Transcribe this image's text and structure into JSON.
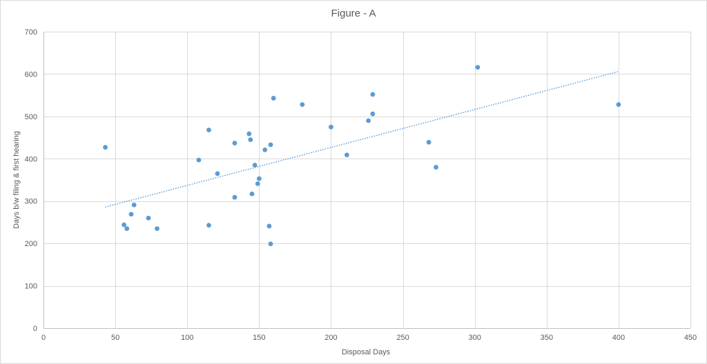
{
  "chart_data": {
    "type": "scatter",
    "title": "Figure - A",
    "xlabel": "Disposal Days",
    "ylabel": "Days b/w filing & first hearing",
    "xlim": [
      0,
      450
    ],
    "ylim": [
      0,
      700
    ],
    "x_ticks": [
      0,
      50,
      100,
      150,
      200,
      250,
      300,
      350,
      400,
      450
    ],
    "y_ticks": [
      0,
      100,
      200,
      300,
      400,
      500,
      600,
      700
    ],
    "grid": true,
    "legend": "none",
    "marker_color": "#5b9bd5",
    "trendline": {
      "type": "linear",
      "style": "dotted",
      "color": "#5b9bd5",
      "x": [
        43,
        400
      ],
      "y": [
        286,
        606
      ]
    },
    "points": [
      {
        "x": 43,
        "y": 427
      },
      {
        "x": 56,
        "y": 244
      },
      {
        "x": 58,
        "y": 235
      },
      {
        "x": 61,
        "y": 269
      },
      {
        "x": 63,
        "y": 291
      },
      {
        "x": 73,
        "y": 260
      },
      {
        "x": 79,
        "y": 235
      },
      {
        "x": 108,
        "y": 397
      },
      {
        "x": 115,
        "y": 468
      },
      {
        "x": 115,
        "y": 243
      },
      {
        "x": 121,
        "y": 365
      },
      {
        "x": 133,
        "y": 437
      },
      {
        "x": 133,
        "y": 309
      },
      {
        "x": 143,
        "y": 459
      },
      {
        "x": 144,
        "y": 445
      },
      {
        "x": 145,
        "y": 317
      },
      {
        "x": 147,
        "y": 385
      },
      {
        "x": 149,
        "y": 341
      },
      {
        "x": 150,
        "y": 353
      },
      {
        "x": 154,
        "y": 421
      },
      {
        "x": 157,
        "y": 241
      },
      {
        "x": 158,
        "y": 433
      },
      {
        "x": 158,
        "y": 199
      },
      {
        "x": 160,
        "y": 543
      },
      {
        "x": 180,
        "y": 528
      },
      {
        "x": 200,
        "y": 475
      },
      {
        "x": 211,
        "y": 409
      },
      {
        "x": 226,
        "y": 490
      },
      {
        "x": 229,
        "y": 506
      },
      {
        "x": 229,
        "y": 552
      },
      {
        "x": 268,
        "y": 439
      },
      {
        "x": 273,
        "y": 380
      },
      {
        "x": 302,
        "y": 616
      },
      {
        "x": 400,
        "y": 528
      }
    ]
  }
}
